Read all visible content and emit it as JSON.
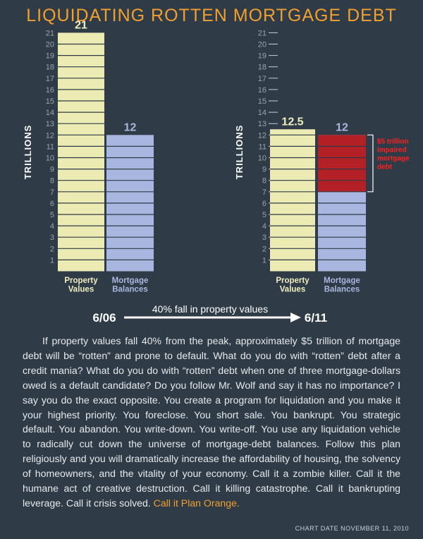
{
  "title": "LIQUIDATING ROTTEN MORTGAGE DEBT",
  "colors": {
    "background": "#2f3b46",
    "title": "#f0a030",
    "property": "#ecebb3",
    "mortgage": "#a9b6df",
    "impaired": "#b32025",
    "impaired_text": "#ff2020",
    "axis_text": "#9aa4ac",
    "value_label_property": "#f0eec0",
    "value_label_mortgage": "#a9b6df"
  },
  "chart_data": [
    {
      "type": "bar",
      "date_label": "6/06",
      "ylabel": "TRILLIONS",
      "ylim": [
        0,
        21
      ],
      "yticks": [
        1,
        2,
        3,
        4,
        5,
        6,
        7,
        8,
        9,
        10,
        11,
        12,
        13,
        14,
        15,
        16,
        17,
        18,
        19,
        20,
        21
      ],
      "categories": [
        "Property Values",
        "Mortgage Balances"
      ],
      "category_lines": [
        [
          "Property",
          "Values"
        ],
        [
          "Mortgage",
          "Balances"
        ]
      ],
      "values": [
        21,
        12
      ],
      "value_labels": [
        "21",
        "12"
      ]
    },
    {
      "type": "bar",
      "date_label": "6/11",
      "ylabel": "TRILLIONS",
      "ylim": [
        0,
        21
      ],
      "yticks": [
        1,
        2,
        3,
        4,
        5,
        6,
        7,
        8,
        9,
        10,
        11,
        12,
        13,
        14,
        15,
        16,
        17,
        18,
        19,
        20,
        21
      ],
      "categories": [
        "Property Values",
        "Mortgage Balances"
      ],
      "category_lines": [
        [
          "Property",
          "Values"
        ],
        [
          "Mortgage",
          "Balances"
        ]
      ],
      "values": [
        12.5,
        12
      ],
      "value_labels": [
        "12.5",
        "12"
      ],
      "impaired_segment": {
        "from": 7,
        "to": 12,
        "label_lines": [
          "$5 trillion",
          "impaired",
          "mortgage",
          "debt"
        ]
      }
    }
  ],
  "timeline": {
    "start": "6/06",
    "end": "6/11",
    "caption": "40% fall in property values"
  },
  "body": {
    "paragraph": "If property values fall 40% from the peak, approximately $5 trillion of mortgage debt will be “rotten” and prone to default. What do you do with “rotten” debt after a credit mania? What do you do with “rotten” debt when one of three mortgage-dollars owed is a default candidate? Do you follow Mr. Wolf and say it has no importance? I say you do the exact opposite. You create a program for liquidation and you make it your highest priority. You foreclose. You short sale. You bankrupt. You strategic default. You abandon. You write-down. You write-off. You use any liquidation vehicle to radically cut down the universe of mortgage-debt balances. Follow this plan religiously and you will dramatically increase the affordability of housing, the solvency of homeowners, and the vitality of your economy. Call it a zombie killer. Call it the humane act of creative destruction. Call it killing catastrophe. Call it bankrupting leverage. Call it crisis solved.",
    "highlight": "Call it Plan Orange."
  },
  "chart_date": "CHART DATE NOVEMBER 11, 2010"
}
